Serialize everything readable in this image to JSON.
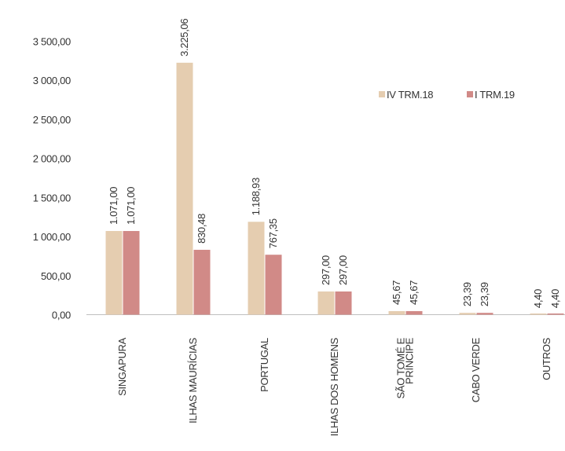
{
  "chart_data": {
    "type": "bar",
    "categories": [
      [
        "SINGAPURA"
      ],
      [
        "ILHAS MAURÍCIAS"
      ],
      [
        "PORTUGAL"
      ],
      [
        "ILHAS DOS HOMENS"
      ],
      [
        "SÃO TOMÉ E",
        "PRÍNCIPE"
      ],
      [
        "CABO VERDE"
      ],
      [
        "OUTROS"
      ]
    ],
    "series": [
      {
        "name": "IV TRM.18",
        "color": "#e5cdb0",
        "values": [
          1071.0,
          3225.06,
          1188.93,
          297.0,
          45.67,
          23.39,
          4.4
        ],
        "labels": [
          "1.071,00",
          "3.225,06",
          "1.188,93",
          "297,00",
          "45,67",
          "23,39",
          "4,40"
        ]
      },
      {
        "name": "I TRM.19",
        "color": "#d18a87",
        "values": [
          1071.0,
          830.48,
          767.35,
          297.0,
          45.67,
          23.39,
          4.4
        ],
        "labels": [
          "1.071,00",
          "830,48",
          "767,35",
          "297,00",
          "45,67",
          "23,39",
          "4,40"
        ]
      }
    ],
    "yticks": [
      0,
      500,
      1000,
      1500,
      2000,
      2500,
      3000,
      3500
    ],
    "ytick_labels": [
      "0,00",
      "500,00",
      "1 000,00",
      "1 500,00",
      "2 000,00",
      "2 500,00",
      "3 000,00",
      "3 500,00"
    ],
    "ylim": [
      0,
      3500
    ],
    "title": "",
    "xlabel": "",
    "ylabel": "",
    "grid": false,
    "legend_position": "top-right"
  }
}
